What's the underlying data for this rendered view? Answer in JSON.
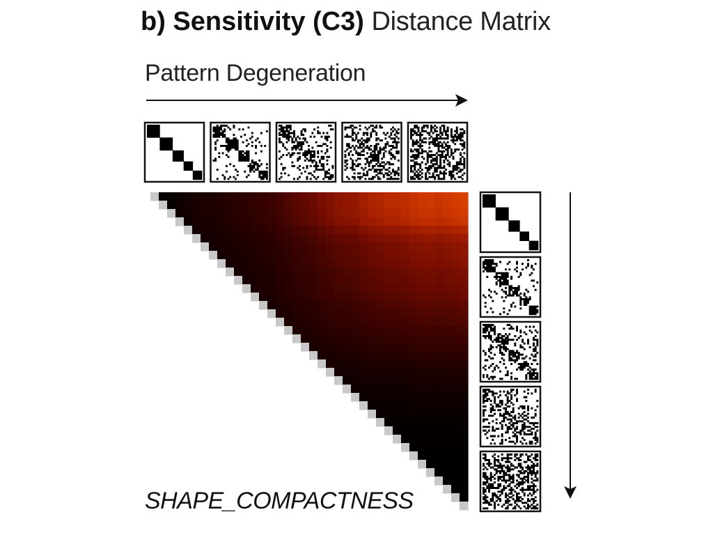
{
  "title": {
    "prefix": "b) Sensitivity (C3)",
    "suffix": "Distance Matrix"
  },
  "chart_data": {
    "type": "heatmap",
    "shape": "upper-triangular",
    "title": "b) Sensitivity (C3) Distance Matrix",
    "xlabel": "Pattern Degeneration",
    "ylabel": "",
    "metric": "SHAPE_COMPACTNESS",
    "n": 38,
    "colormap": [
      "#000000",
      "#1a0000",
      "#3d0300",
      "#6b0a00",
      "#9a1a00",
      "#c93300",
      "#ee5500"
    ],
    "value_range": [
      0,
      1
    ],
    "column_profile": [
      0.02,
      0.04,
      0.06,
      0.09,
      0.12,
      0.15,
      0.17,
      0.18,
      0.2,
      0.22,
      0.24,
      0.26,
      0.28,
      0.3,
      0.32,
      0.36,
      0.4,
      0.44,
      0.47,
      0.5,
      0.55,
      0.58,
      0.62,
      0.64,
      0.65,
      0.7,
      0.73,
      0.75,
      0.78,
      0.78,
      0.8,
      0.83,
      0.85,
      0.86,
      0.84,
      0.86,
      0.88,
      0.9
    ],
    "row_profile": [
      1.0,
      0.99,
      0.97,
      0.93,
      0.83,
      0.75,
      0.7,
      0.68,
      0.66,
      0.62,
      0.6,
      0.58,
      0.55,
      0.5,
      0.47,
      0.44,
      0.4,
      0.36,
      0.32,
      0.28,
      0.24,
      0.2,
      0.17,
      0.14,
      0.11,
      0.09,
      0.07,
      0.05,
      0.04,
      0.03,
      0.02,
      0.02,
      0.01,
      0.01,
      0.01,
      0.0,
      0.0,
      0.0
    ],
    "pattern_thumbnails": [
      "level-1",
      "level-2",
      "level-3",
      "level-4",
      "level-5"
    ]
  },
  "labels": {
    "degeneration": "Pattern Degeneration",
    "metric": "SHAPE_COMPACTNESS"
  },
  "colors": {
    "diagonal": "#c8c8c8",
    "arrow": "#111111",
    "thumb_border": "#111111"
  },
  "icons": {
    "horizontal_arrow": "arrow-right-icon",
    "vertical_arrow": "arrow-down-icon"
  }
}
